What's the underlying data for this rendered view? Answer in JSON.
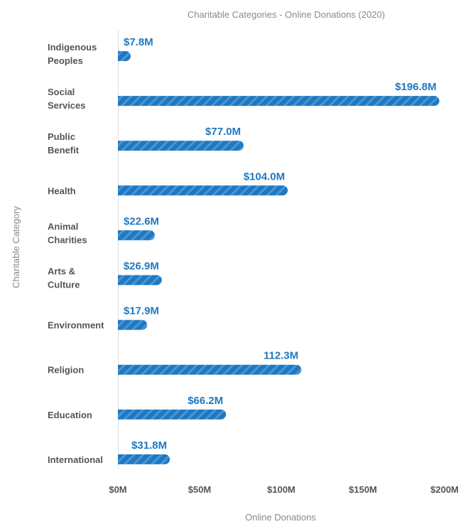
{
  "chart_data": {
    "type": "bar",
    "orientation": "horizontal",
    "title": "Charitable Categories - Online Donations (2020)",
    "xlabel": "Online Donations",
    "ylabel": "Charitable Category",
    "xlim": [
      0,
      200
    ],
    "x_unit": "$M",
    "grid": false,
    "legend": "none",
    "bar_color": "#1f78c1",
    "bar_pattern": "diagonal-stripes",
    "categories": [
      [
        "Indigenous",
        "Peoples"
      ],
      [
        "Social",
        "Services"
      ],
      [
        "Public",
        "Benefit"
      ],
      [
        "Health"
      ],
      [
        "Animal",
        "Charities"
      ],
      [
        "Arts &",
        "Culture"
      ],
      [
        "Environment"
      ],
      [
        "Religion"
      ],
      [
        "Education"
      ],
      [
        "International"
      ]
    ],
    "values": [
      7.8,
      196.8,
      77.0,
      104.0,
      22.6,
      26.9,
      17.9,
      112.3,
      66.2,
      31.8
    ],
    "value_labels": [
      "$7.8M",
      "$196.8M",
      "$77.0M",
      "$104.0M",
      "$22.6M",
      "$26.9M",
      "$17.9M",
      "112.3M",
      "$66.2M",
      "$31.8M"
    ],
    "x_ticks": [
      0,
      50,
      100,
      150,
      200
    ],
    "x_tick_labels": [
      "$0M",
      "$50M",
      "$100M",
      "$150M",
      "$200M"
    ]
  }
}
